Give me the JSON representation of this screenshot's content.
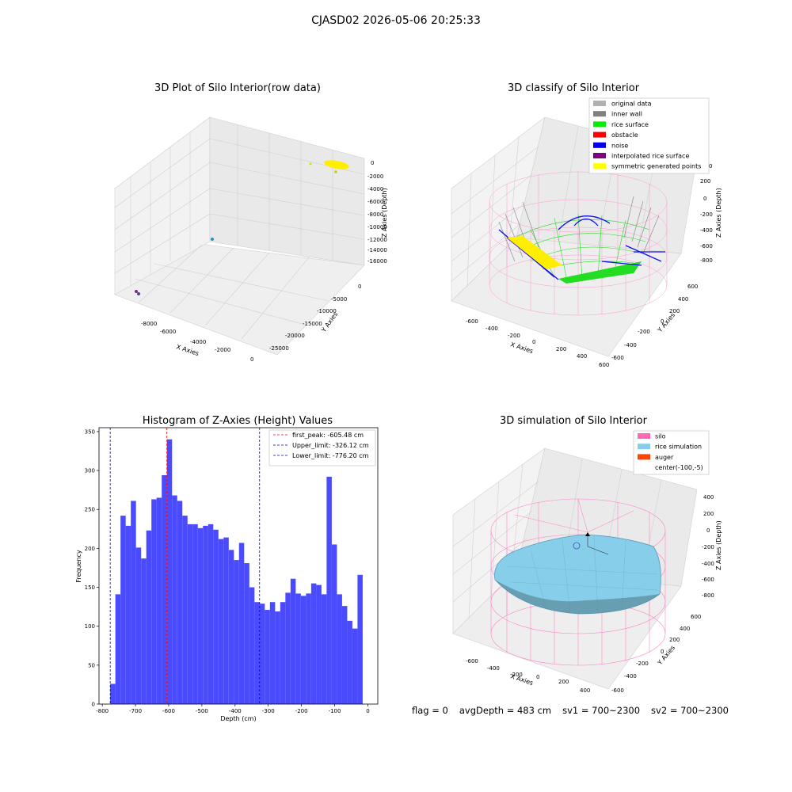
{
  "suptitle": "CJASD02 2026-05-06 20:25:33",
  "panels": {
    "raw": {
      "title": "3D Plot of Silo Interior(row data)",
      "xlabel": "X Axies",
      "ylabel": "Y Axies",
      "zlabel": "Z Axies (Depth)",
      "xticks": [
        "-8000",
        "-6000",
        "-4000",
        "-2000",
        "0"
      ],
      "yticks": [
        "0",
        "-5000",
        "-10000",
        "-15000",
        "-20000",
        "-25000"
      ],
      "zticks": [
        "0",
        "-2000",
        "-4000",
        "-6000",
        "-8000",
        "-10000",
        "-12000",
        "-14000",
        "-16000"
      ]
    },
    "classify": {
      "title": "3D classify of Silo Interior",
      "xlabel": "X Axies",
      "ylabel": "Y Axies",
      "zlabel": "Z Axies (Depth)",
      "xticks": [
        "-600",
        "-400",
        "-200",
        "0",
        "200",
        "400",
        "600"
      ],
      "yticks": [
        "600",
        "400",
        "200",
        "0",
        "-200",
        "-400",
        "-600"
      ],
      "zticks": [
        "200",
        "0",
        "-200",
        "-400",
        "-600",
        "-800"
      ],
      "ztop_tick": "0",
      "legend": [
        {
          "label": "original data",
          "color": "#b0b0b0"
        },
        {
          "label": "inner wall",
          "color": "#808080"
        },
        {
          "label": "rice surface",
          "color": "#00ee00"
        },
        {
          "label": "obstacle",
          "color": "#ff0000"
        },
        {
          "label": "noise",
          "color": "#0000ee"
        },
        {
          "label": "interpolated rice surface",
          "color": "#800080"
        },
        {
          "label": "symmetric generated points",
          "color": "#ffff00"
        }
      ]
    },
    "simulation": {
      "title": "3D simulation of Silo Interior",
      "xlabel": "X Axies",
      "ylabel": "Y Axies",
      "zlabel": "Z Axies (Depth)",
      "xticks": [
        "-600",
        "-400",
        "-200",
        "0",
        "200",
        "400"
      ],
      "yticks": [
        "600",
        "400",
        "200",
        "0",
        "-200",
        "-400",
        "-600"
      ],
      "zticks": [
        "400",
        "200",
        "0",
        "-200",
        "-400",
        "-600",
        "-800"
      ],
      "legend": [
        {
          "label": "silo",
          "color": "#ff69b4"
        },
        {
          "label": "rice simulation",
          "color": "#87ceeb"
        },
        {
          "label": "auger",
          "color": "#ff4500"
        },
        {
          "label": "center(-100,-5)",
          "color": ""
        }
      ]
    }
  },
  "status": {
    "flag": "flag = 0",
    "avg_depth": "avgDepth = 483 cm",
    "sv1": "sv1 = 700~2300",
    "sv2": "sv2 = 700~2300"
  },
  "chart_data": {
    "type": "bar",
    "title": "Histogram of Z-Axies (Height) Values",
    "xlabel": "Depth (cm)",
    "ylabel": "Frequency",
    "xlim": [
      -810,
      30
    ],
    "ylim": [
      0,
      355
    ],
    "xticks": [
      -800,
      -700,
      -600,
      -500,
      -400,
      -300,
      -200,
      -100,
      0
    ],
    "yticks": [
      0,
      50,
      100,
      150,
      200,
      250,
      300,
      350
    ],
    "bar_color": "#4a4aff",
    "bin_start": -776.2,
    "bin_width": 15.524,
    "values": [
      26,
      141,
      242,
      229,
      261,
      201,
      187,
      223,
      263,
      265,
      294,
      340,
      268,
      261,
      242,
      231,
      231,
      226,
      229,
      231,
      224,
      212,
      214,
      198,
      185,
      207,
      181,
      150,
      131,
      129,
      121,
      131,
      119,
      131,
      143,
      161,
      142,
      139,
      142,
      155,
      153,
      141,
      292,
      205,
      141,
      126,
      107,
      97,
      166,
      0
    ],
    "vlines": [
      {
        "label": "first_peak: -605.48 cm",
        "x": -605.48,
        "color": "#ff0000"
      },
      {
        "label": "Upper_limit: -326.12 cm",
        "x": -326.12,
        "color": "#0000cc"
      },
      {
        "label": "Lower_limit: -776.20 cm",
        "x": -776.2,
        "color": "#0000cc"
      }
    ],
    "legend_position": "top-right"
  }
}
